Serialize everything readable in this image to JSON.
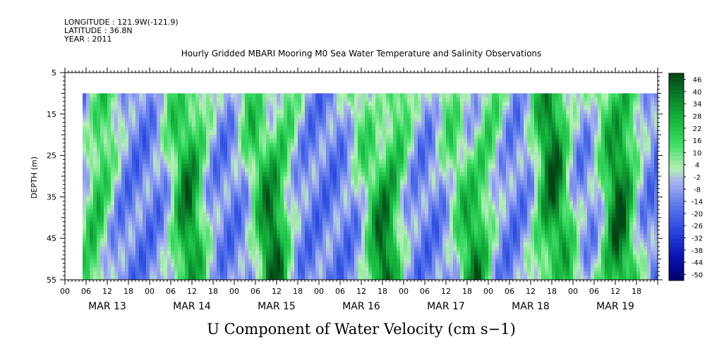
{
  "meta": {
    "longitude": "LONGITUDE : 121.9W(-121.9)",
    "latitude": "LATITUDE : 36.8N",
    "year": "YEAR : 2011"
  },
  "chart_data": {
    "type": "heatmap",
    "title": "Hourly Gridded MBARI Mooring M0 Sea Water Temperature and Salinity Observations",
    "xlabel": "U Component of Water Velocity (cm s−1)",
    "ylabel": "DEPTH (m)",
    "ylim": [
      5,
      55
    ],
    "y_inverted": true,
    "y_ticks": [
      "5",
      "15",
      "25",
      "35",
      "45",
      "55"
    ],
    "x_hour_ticks": [
      "00",
      "06",
      "12",
      "18",
      "00",
      "06",
      "12",
      "18",
      "00",
      "06",
      "12",
      "18",
      "00",
      "06",
      "12",
      "18",
      "00",
      "06",
      "12",
      "18",
      "00",
      "06",
      "12",
      "18",
      "00",
      "06",
      "12",
      "18"
    ],
    "x_day_labels": [
      "MAR 13",
      "MAR 14",
      "MAR 15",
      "MAR 16",
      "MAR 17",
      "MAR 18",
      "MAR 19"
    ],
    "x_range_hours": [
      0,
      168
    ],
    "data_x_start_hour": 5,
    "data_depth_top": 10,
    "colorbar": {
      "labels": [
        "46",
        "40",
        "34",
        "28",
        "22",
        "16",
        "10",
        "4",
        "-2",
        "-8",
        "-14",
        "-20",
        "-26",
        "-32",
        "-38",
        "-44",
        "-50"
      ],
      "range": [
        -50,
        50
      ]
    },
    "band_centers_hours": [
      12,
      30,
      38,
      52,
      63,
      83,
      95,
      108,
      121,
      135,
      140,
      152,
      160
    ],
    "colors": {
      "positive": "#22c14a",
      "negative": "#2f4fe0",
      "neutral": "#aab4f0"
    }
  }
}
